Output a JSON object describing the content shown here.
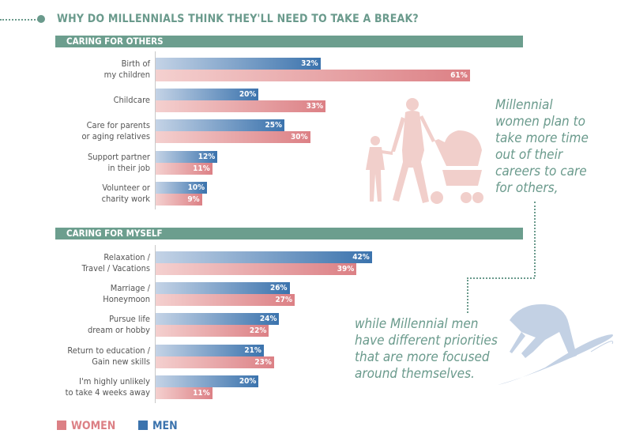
{
  "title": "WHY DO MILLENNIALS THINK THEY'LL NEED TO TAKE A BREAK?",
  "chart_data": {
    "type": "bar",
    "orientation": "horizontal",
    "title": "WHY DO MILLENNIALS THINK THEY'LL NEED TO TAKE A BREAK?",
    "groups": [
      {
        "name": "CARING FOR OTHERS",
        "categories": [
          [
            "Birth of",
            "my children"
          ],
          [
            "Childcare"
          ],
          [
            "Care for parents",
            "or aging relatives"
          ],
          [
            "Support partner",
            "in their job"
          ],
          [
            "Volunteer or",
            "charity work"
          ]
        ],
        "men": [
          32,
          20,
          25,
          12,
          10
        ],
        "women": [
          61,
          33,
          30,
          11,
          9
        ]
      },
      {
        "name": "CARING FOR MYSELF",
        "categories": [
          [
            "Relaxation /",
            "Travel / Vacations"
          ],
          [
            "Marriage /",
            "Honeymoon"
          ],
          [
            "Pursue life",
            "dream or hobby"
          ],
          [
            "Return to education /",
            "Gain new skills"
          ],
          [
            "I'm highly unlikely",
            "to take 4 weeks away"
          ]
        ],
        "men": [
          42,
          26,
          24,
          21,
          20
        ],
        "women": [
          39,
          27,
          22,
          23,
          11
        ]
      }
    ],
    "series": [
      {
        "name": "WOMEN",
        "color": "#dc8085"
      },
      {
        "name": "MEN",
        "color": "#3b73ad"
      }
    ],
    "unit": "%",
    "legend": "bottom-left",
    "grid": false
  },
  "notes": {
    "women": [
      "Millennial",
      "women plan to",
      "take more time",
      "out of their",
      "careers to care",
      "for others,"
    ],
    "men": [
      "while Millennial men",
      "have different priorities",
      "that are more focused",
      "around themselves."
    ]
  },
  "legend": {
    "women": "WOMEN",
    "men": "MEN"
  },
  "icons": [
    "woman-with-child-and-stroller-silhouette",
    "surfer-silhouette"
  ]
}
